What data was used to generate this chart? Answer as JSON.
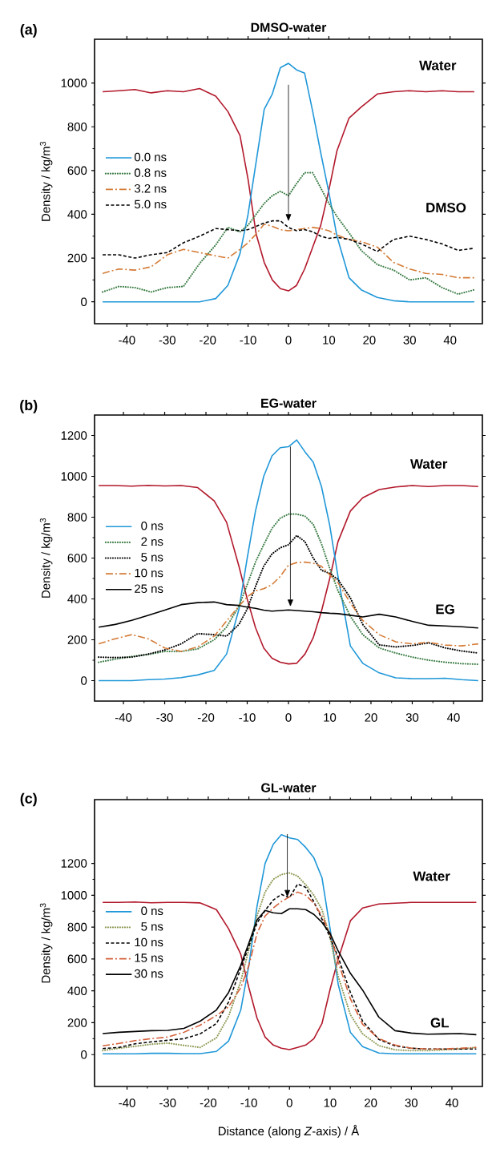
{
  "chart_data": [
    {
      "type": "line",
      "title": "DMSO-water",
      "ylabel": "Density / kg/m$^{3}$",
      "x": [
        -46,
        -42,
        -38,
        -34,
        -30,
        -26,
        -22,
        -18,
        -15,
        -12,
        -10,
        -8,
        -6,
        -4,
        -2,
        0,
        2,
        4,
        6,
        8,
        10,
        12,
        15,
        18,
        22,
        26,
        30,
        34,
        38,
        42,
        46
      ],
      "series": [
        {
          "color": "#b2182b",
          "line_style": "solid",
          "values": [
            960,
            965,
            970,
            955,
            965,
            960,
            975,
            940,
            870,
            760,
            560,
            310,
            180,
            100,
            60,
            50,
            75,
            150,
            250,
            350,
            510,
            690,
            840,
            890,
            950,
            960,
            965,
            960,
            965,
            960,
            960
          ]
        },
        {
          "name": "0.0 ns",
          "color": "#1f97d8",
          "line_style": "solid",
          "values": [
            0,
            0,
            0,
            0,
            0,
            0,
            0,
            15,
            75,
            220,
            400,
            640,
            880,
            950,
            1070,
            1090,
            1060,
            1045,
            870,
            680,
            500,
            300,
            110,
            55,
            20,
            5,
            0,
            0,
            0,
            0,
            0
          ]
        },
        {
          "name": "0.8 ns",
          "color": "#3b7d45",
          "line_style": "dotted",
          "values": [
            45,
            70,
            65,
            45,
            65,
            70,
            175,
            260,
            340,
            320,
            350,
            400,
            450,
            485,
            505,
            485,
            540,
            590,
            590,
            520,
            450,
            390,
            315,
            235,
            170,
            145,
            100,
            110,
            65,
            35,
            55
          ]
        },
        {
          "name": "3.2 ns",
          "color": "#d47b36",
          "line_style": "dashdot",
          "values": [
            130,
            150,
            145,
            160,
            215,
            240,
            225,
            210,
            200,
            240,
            270,
            310,
            355,
            345,
            330,
            325,
            330,
            335,
            340,
            335,
            325,
            305,
            285,
            275,
            250,
            180,
            150,
            130,
            125,
            110,
            110
          ]
        },
        {
          "name": "5.0 ns",
          "color": "#000000",
          "line_style": "dashed",
          "values": [
            215,
            215,
            200,
            215,
            225,
            270,
            300,
            335,
            330,
            325,
            330,
            345,
            360,
            370,
            370,
            340,
            325,
            330,
            320,
            300,
            290,
            295,
            285,
            265,
            230,
            285,
            300,
            285,
            265,
            235,
            245
          ]
        }
      ],
      "xlim": [
        -48,
        48
      ],
      "ylim": [
        -100,
        1200
      ],
      "xticks": [
        -40,
        -30,
        -20,
        -10,
        0,
        10,
        20,
        30,
        40
      ],
      "yticks": [
        0,
        200,
        400,
        600,
        800,
        1000
      ],
      "legend": "left",
      "annotations": [
        "(a)",
        "Water",
        "DMSO"
      ]
    },
    {
      "type": "line",
      "title": "EG-water",
      "ylabel": "Density / kg/m$^{3}$",
      "x": [
        -46,
        -42,
        -38,
        -34,
        -30,
        -26,
        -22,
        -18,
        -15,
        -12,
        -10,
        -8,
        -6,
        -4,
        -2,
        0,
        2,
        4,
        6,
        8,
        10,
        12,
        15,
        18,
        22,
        26,
        30,
        34,
        38,
        42,
        46
      ],
      "series": [
        {
          "color": "#b2182b",
          "line_style": "solid",
          "values": [
            955,
            955,
            952,
            956,
            953,
            955,
            945,
            880,
            775,
            560,
            400,
            260,
            160,
            110,
            90,
            82,
            85,
            130,
            210,
            340,
            500,
            680,
            830,
            895,
            935,
            948,
            955,
            950,
            955,
            955,
            950
          ]
        },
        {
          "name": "0 ns",
          "color": "#1f97d8",
          "line_style": "solid",
          "values": [
            0,
            0,
            0,
            5,
            8,
            15,
            28,
            50,
            130,
            350,
            600,
            830,
            1000,
            1100,
            1140,
            1145,
            1178,
            1120,
            1070,
            950,
            760,
            510,
            170,
            85,
            38,
            14,
            10,
            10,
            12,
            5,
            0
          ]
        },
        {
          "name": "2 ns",
          "color": "#3b7d45",
          "line_style": "dotted",
          "values": [
            90,
            105,
            118,
            128,
            143,
            143,
            155,
            200,
            262,
            365,
            470,
            580,
            665,
            745,
            795,
            815,
            815,
            805,
            765,
            670,
            550,
            440,
            315,
            225,
            160,
            135,
            115,
            100,
            90,
            83,
            80
          ]
        },
        {
          "name": "5 ns",
          "color": "#000000",
          "line_style": "dotted",
          "values": [
            115,
            113,
            115,
            130,
            150,
            180,
            230,
            225,
            218,
            275,
            350,
            460,
            560,
            620,
            650,
            665,
            710,
            680,
            600,
            540,
            525,
            495,
            405,
            275,
            175,
            165,
            172,
            185,
            160,
            145,
            135
          ]
        },
        {
          "name": "10 ns",
          "color": "#d47b36",
          "line_style": "dashdot",
          "values": [
            180,
            205,
            225,
            205,
            160,
            143,
            165,
            218,
            292,
            365,
            410,
            440,
            450,
            470,
            510,
            565,
            578,
            580,
            575,
            560,
            518,
            480,
            380,
            295,
            225,
            190,
            180,
            188,
            174,
            170,
            180
          ]
        },
        {
          "name": "25 ns",
          "color": "#000000",
          "line_style": "solid",
          "values": [
            262,
            275,
            295,
            320,
            345,
            372,
            382,
            385,
            372,
            368,
            360,
            354,
            345,
            340,
            343,
            346,
            343,
            340,
            337,
            333,
            330,
            328,
            320,
            312,
            325,
            312,
            290,
            271,
            268,
            264,
            258
          ]
        }
      ],
      "xlim": [
        -47,
        47
      ],
      "ylim": [
        -100,
        1300
      ],
      "xticks": [
        -40,
        -30,
        -20,
        -10,
        0,
        10,
        20,
        30,
        40
      ],
      "yticks": [
        0,
        200,
        400,
        600,
        800,
        1000,
        1200
      ],
      "legend": "left",
      "annotations": [
        "(b)",
        "Water",
        "EG"
      ]
    },
    {
      "type": "line",
      "title": "GL-water",
      "ylabel": "Density / kg/m$^{3}$",
      "xlabel": "Distance (along *Z*-axis)  / Å",
      "x": [
        -46,
        -42,
        -38,
        -34,
        -30,
        -26,
        -22,
        -18,
        -15,
        -12,
        -10,
        -8,
        -6,
        -4,
        -2,
        0,
        2,
        4,
        6,
        8,
        10,
        12,
        15,
        18,
        22,
        26,
        30,
        34,
        38,
        42,
        46
      ],
      "series": [
        {
          "color": "#b2182b",
          "line_style": "solid",
          "values": [
            955,
            955,
            958,
            953,
            955,
            955,
            952,
            910,
            790,
            630,
            420,
            230,
            110,
            60,
            40,
            31,
            45,
            60,
            100,
            195,
            410,
            600,
            840,
            920,
            945,
            950,
            955,
            955,
            955,
            955,
            955
          ]
        },
        {
          "name": "0 ns",
          "color": "#1f97d8",
          "line_style": "solid",
          "values": [
            5,
            5,
            5,
            8,
            8,
            6,
            6,
            20,
            85,
            280,
            560,
            930,
            1200,
            1320,
            1380,
            1360,
            1350,
            1300,
            1235,
            1110,
            790,
            440,
            140,
            50,
            10,
            5,
            5,
            5,
            5,
            5,
            5
          ]
        },
        {
          "name": "5 ns",
          "color": "#8f9a55",
          "line_style": "dotted",
          "values": [
            25,
            40,
            52,
            65,
            72,
            58,
            45,
            105,
            240,
            460,
            660,
            870,
            1020,
            1100,
            1130,
            1140,
            1120,
            1066,
            1000,
            910,
            735,
            490,
            250,
            130,
            56,
            30,
            25,
            25,
            30,
            35,
            45
          ]
        },
        {
          "name": "10 ns",
          "color": "#000000",
          "line_style": "dashed",
          "values": [
            38,
            45,
            68,
            80,
            90,
            100,
            130,
            195,
            330,
            540,
            680,
            825,
            905,
            970,
            1005,
            985,
            1070,
            1050,
            960,
            850,
            735,
            610,
            390,
            210,
            95,
            55,
            40,
            35,
            35,
            35,
            35
          ]
        },
        {
          "name": "15 ns",
          "color": "#d4603a",
          "line_style": "dashdot",
          "values": [
            55,
            70,
            88,
            100,
            110,
            140,
            185,
            245,
            300,
            420,
            560,
            760,
            870,
            920,
            960,
            990,
            1020,
            1000,
            950,
            870,
            760,
            580,
            350,
            190,
            100,
            60,
            40,
            35,
            35,
            40,
            45
          ]
        },
        {
          "name": "30 ns",
          "color": "#000000",
          "line_style": "solid",
          "values": [
            132,
            140,
            145,
            150,
            152,
            165,
            210,
            280,
            390,
            560,
            700,
            845,
            905,
            890,
            885,
            915,
            915,
            910,
            880,
            830,
            760,
            650,
            510,
            405,
            235,
            150,
            135,
            128,
            130,
            132,
            125
          ]
        }
      ],
      "xlim": [
        -48,
        47.5
      ],
      "ylim": [
        -200,
        1600
      ],
      "xticks": [
        -40,
        -30,
        -20,
        -10,
        0,
        10,
        20,
        30,
        40
      ],
      "yticks": [
        0,
        200,
        400,
        600,
        800,
        1000,
        1200
      ],
      "legend": "left",
      "annotations": [
        "(c)",
        "Water",
        "GL"
      ]
    }
  ]
}
